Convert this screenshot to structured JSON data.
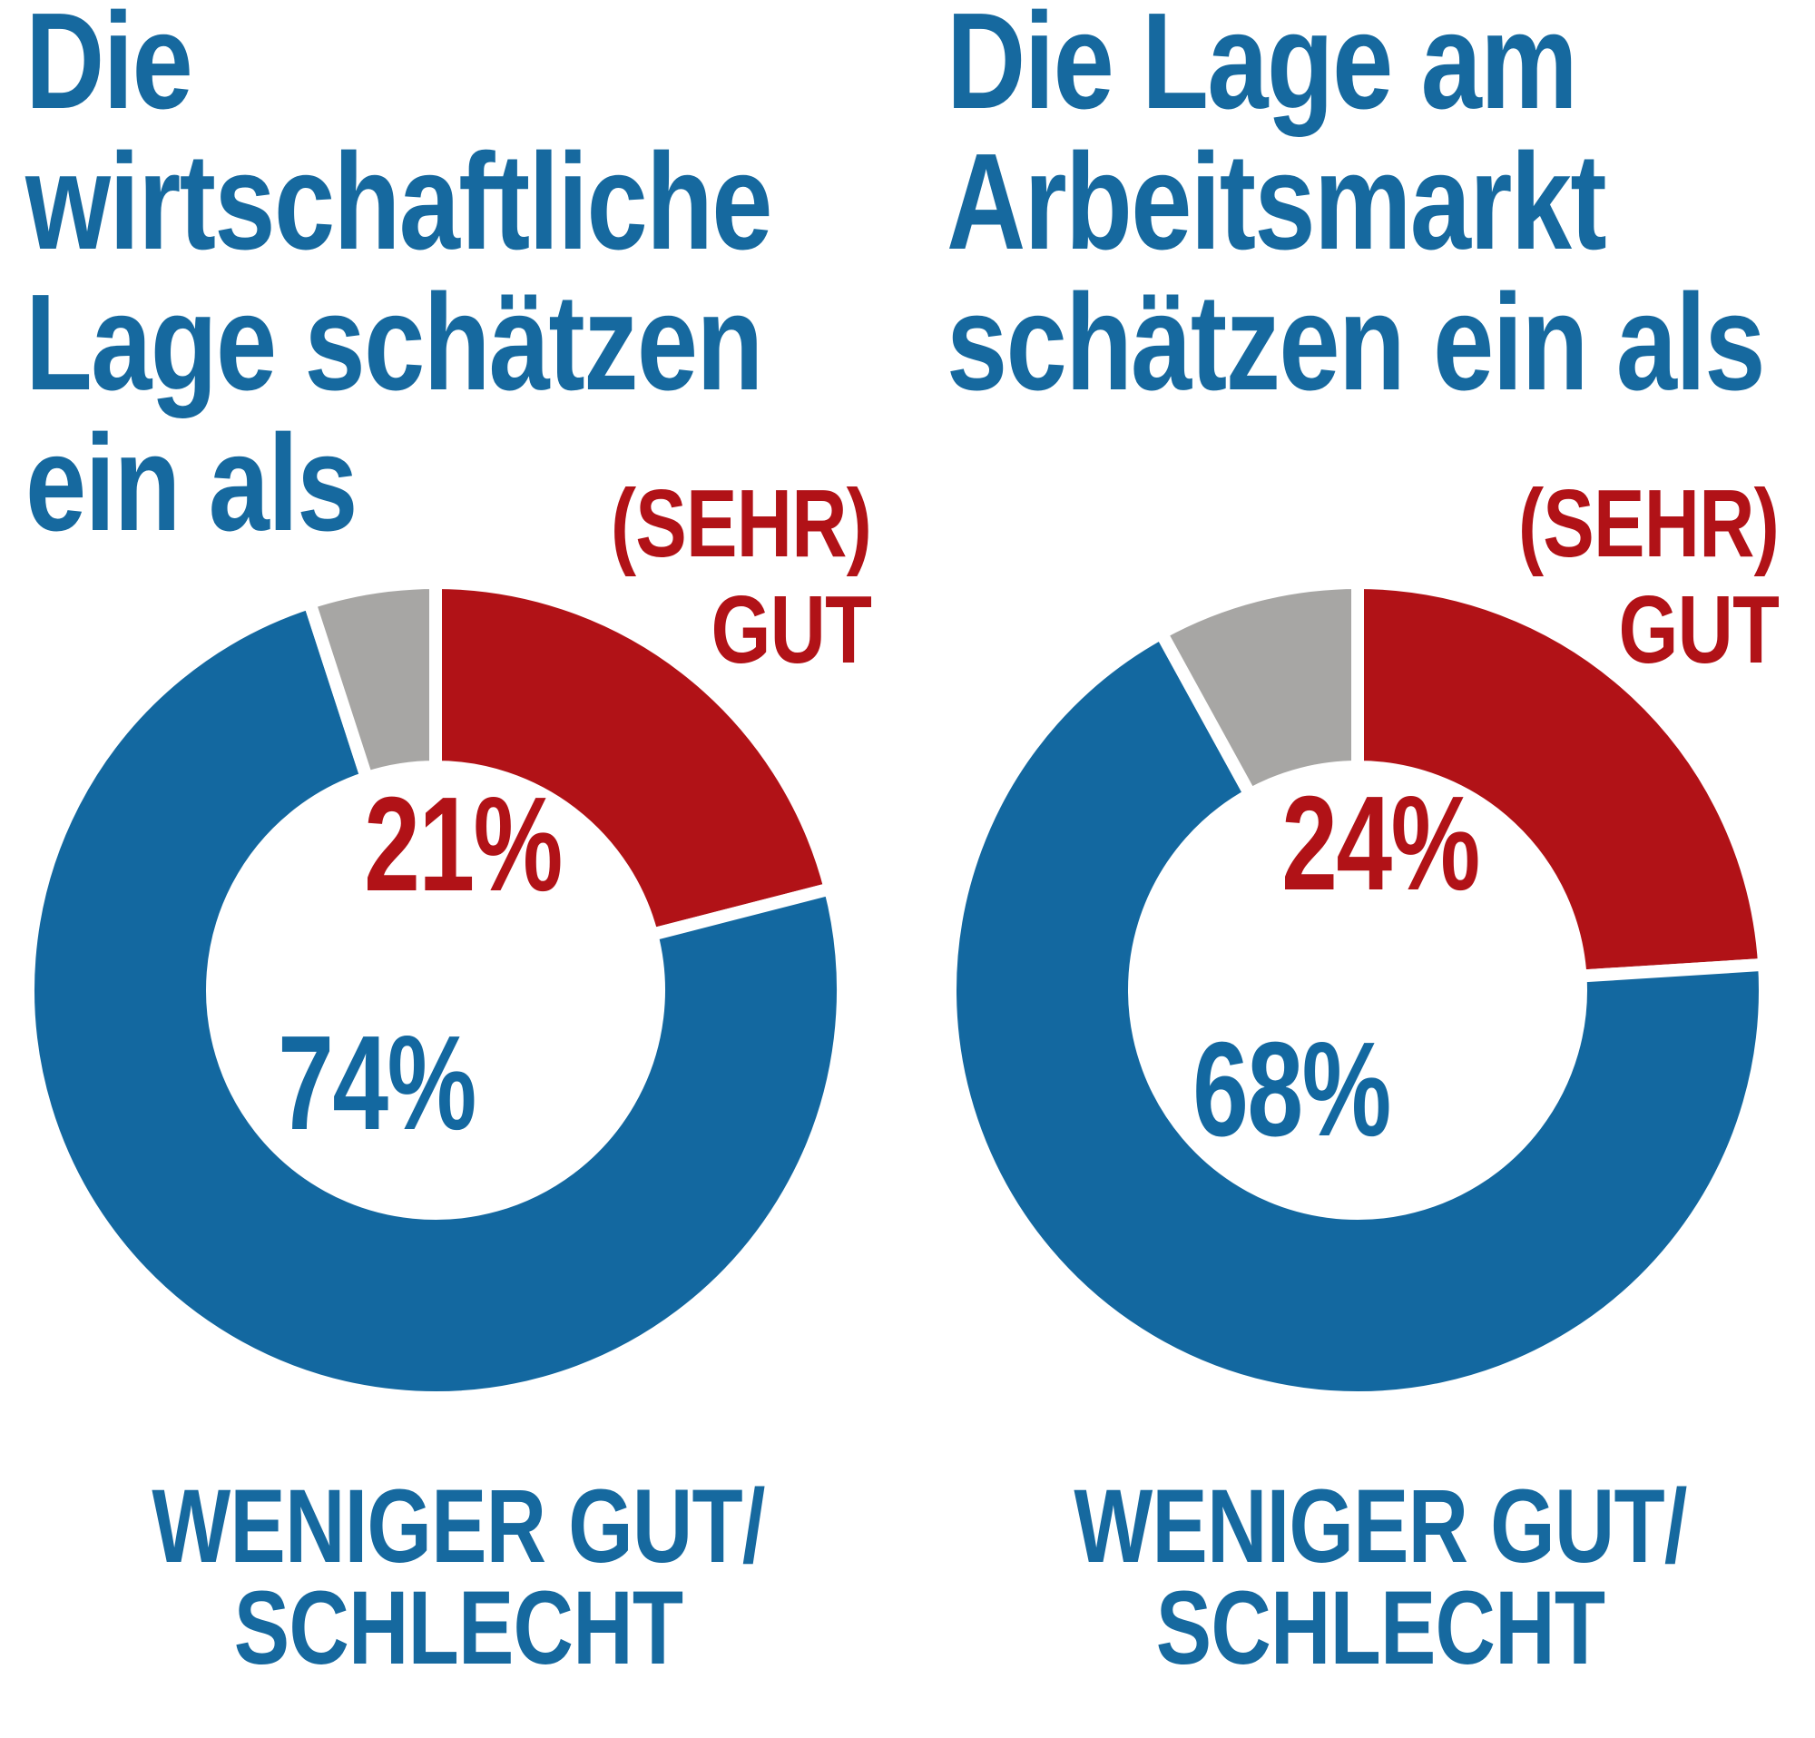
{
  "colors": {
    "red": "#b11217",
    "blue": "#1368a0",
    "gray": "#a7a6a4",
    "title_blue": "#16699f",
    "separator": "#ffffff",
    "background": "#ffffff"
  },
  "chart_data": [
    {
      "type": "donut",
      "title": "Die wirtschaftliche Lage schätzen ein als",
      "title_lines": [
        "Die",
        "wirtschaftliche",
        "Lage schätzen",
        "ein als"
      ],
      "start_angle_deg": 0,
      "direction": "clockwise",
      "outer_radius": 449,
      "inner_radius": 246,
      "separator_width": 14,
      "slices": [
        {
          "label": "(SEHR) GUT",
          "label_lines": [
            "(SEHR)",
            "GUT"
          ],
          "value": 21,
          "pct_text": "21%",
          "color": "#b11217"
        },
        {
          "label": "WENIGER GUT/ SCHLECHT",
          "label_lines": [
            "WENIGER GUT/",
            "SCHLECHT"
          ],
          "value": 74,
          "pct_text": "74%",
          "color": "#1368a0"
        },
        {
          "label": "",
          "label_lines": [],
          "value": 5,
          "pct_text": "",
          "color": "#a7a6a4"
        }
      ]
    },
    {
      "type": "donut",
      "title": "Die Lage am Arbeitsmarkt schätzen ein als",
      "title_lines": [
        "Die Lage am",
        "Arbeitsmarkt",
        "schätzen ein als"
      ],
      "start_angle_deg": 0,
      "direction": "clockwise",
      "outer_radius": 449,
      "inner_radius": 246,
      "separator_width": 14,
      "slices": [
        {
          "label": "(SEHR) GUT",
          "label_lines": [
            "(SEHR)",
            "GUT"
          ],
          "value": 24,
          "pct_text": "24%",
          "color": "#b11217"
        },
        {
          "label": "WENIGER GUT/ SCHLECHT",
          "label_lines": [
            "WENIGER GUT/",
            "SCHLECHT"
          ],
          "value": 68,
          "pct_text": "68%",
          "color": "#1368a0"
        },
        {
          "label": "",
          "label_lines": [],
          "value": 8,
          "pct_text": "",
          "color": "#a7a6a4"
        }
      ]
    }
  ]
}
